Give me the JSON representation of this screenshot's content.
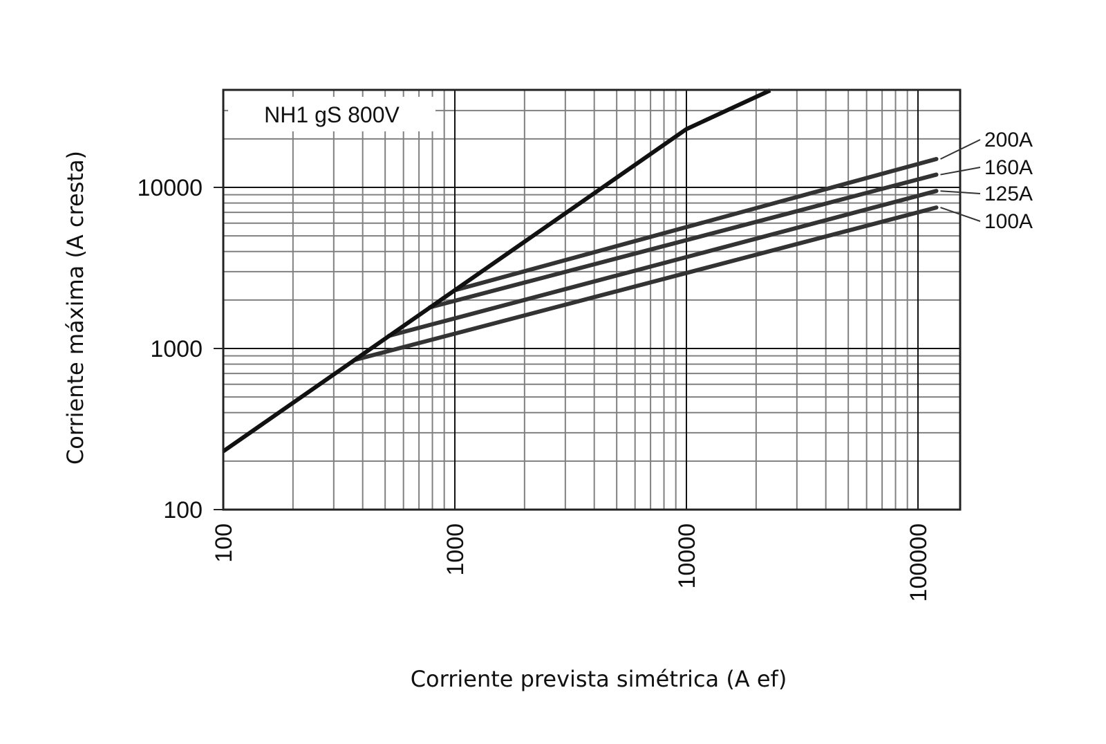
{
  "chart_data": {
    "type": "line",
    "title": "NH1 gS 800V",
    "xlabel": "Corriente prevista simétrica (A ef)",
    "ylabel": "Corriente máxima (A cresta)",
    "xscale": "log",
    "yscale": "log",
    "xlim": [
      100,
      150000
    ],
    "ylim": [
      100,
      40000
    ],
    "grid": true,
    "x_ticks": [
      100,
      1000,
      10000,
      100000
    ],
    "x_tick_labels": [
      "100",
      "1000",
      "10000",
      "100000"
    ],
    "y_ticks": [
      100,
      1000,
      10000
    ],
    "y_tick_labels": [
      "100",
      "1000",
      "10000"
    ],
    "envelope": {
      "x": [
        100,
        1000,
        10000,
        23000
      ],
      "y": [
        230,
        2300,
        23000,
        40000
      ]
    },
    "series": [
      {
        "name": "200A",
        "x": [
          1000,
          120000
        ],
        "y": [
          2300,
          15000
        ]
      },
      {
        "name": "160A",
        "x": [
          780,
          120000
        ],
        "y": [
          1800,
          12000
        ]
      },
      {
        "name": "125A",
        "x": [
          520,
          120000
        ],
        "y": [
          1200,
          9500
        ]
      },
      {
        "name": "100A",
        "x": [
          370,
          120000
        ],
        "y": [
          850,
          7500
        ]
      }
    ],
    "colors": {
      "envelope": "#111111",
      "series": "#333333",
      "grid_major": "#111111",
      "grid_minor": "#808080"
    }
  }
}
